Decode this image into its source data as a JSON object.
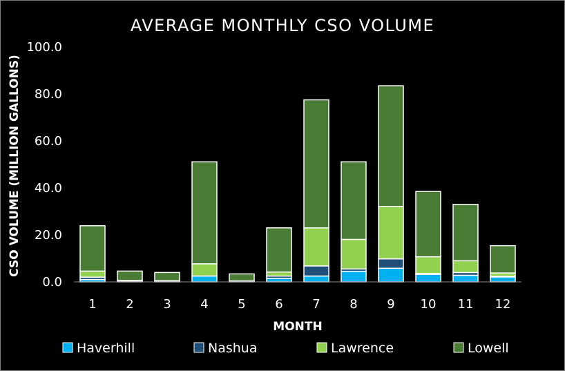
{
  "chart_data": {
    "type": "bar",
    "stacked": true,
    "title": "AVERAGE MONTHLY CSO VOLUME",
    "xlabel": "MONTH",
    "ylabel": "CSO VOLUME (MILLION GALLONS)",
    "ylim": [
      0,
      100
    ],
    "yticks": [
      "0.0",
      "20.0",
      "40.0",
      "60.0",
      "80.0",
      "100.0"
    ],
    "categories": [
      "1",
      "2",
      "3",
      "4",
      "5",
      "6",
      "7",
      "8",
      "9",
      "10",
      "11",
      "12"
    ],
    "grid": false,
    "legend_position": "bottom",
    "series": [
      {
        "name": "Haverhill",
        "color": "#00b0f0",
        "values": [
          1.0,
          0.3,
          0.3,
          2.5,
          0.2,
          1.5,
          2.5,
          4.5,
          5.8,
          3.2,
          2.8,
          2.1
        ]
      },
      {
        "name": "Nashua",
        "color": "#1f4e79",
        "values": [
          1.0,
          0.0,
          0.0,
          0.0,
          0.0,
          1.0,
          4.3,
          1.0,
          4.0,
          0.4,
          1.2,
          0.3
        ]
      },
      {
        "name": "Lawrence",
        "color": "#92d050",
        "values": [
          2.6,
          0.3,
          0.2,
          5.2,
          0.2,
          1.7,
          16.2,
          12.6,
          22.3,
          7.1,
          5.0,
          1.4
        ]
      },
      {
        "name": "Lowell",
        "color": "#4a7b34",
        "values": [
          19.3,
          4.0,
          3.5,
          43.4,
          3.0,
          18.8,
          54.5,
          33.0,
          51.4,
          27.8,
          24.0,
          11.6
        ]
      }
    ]
  }
}
